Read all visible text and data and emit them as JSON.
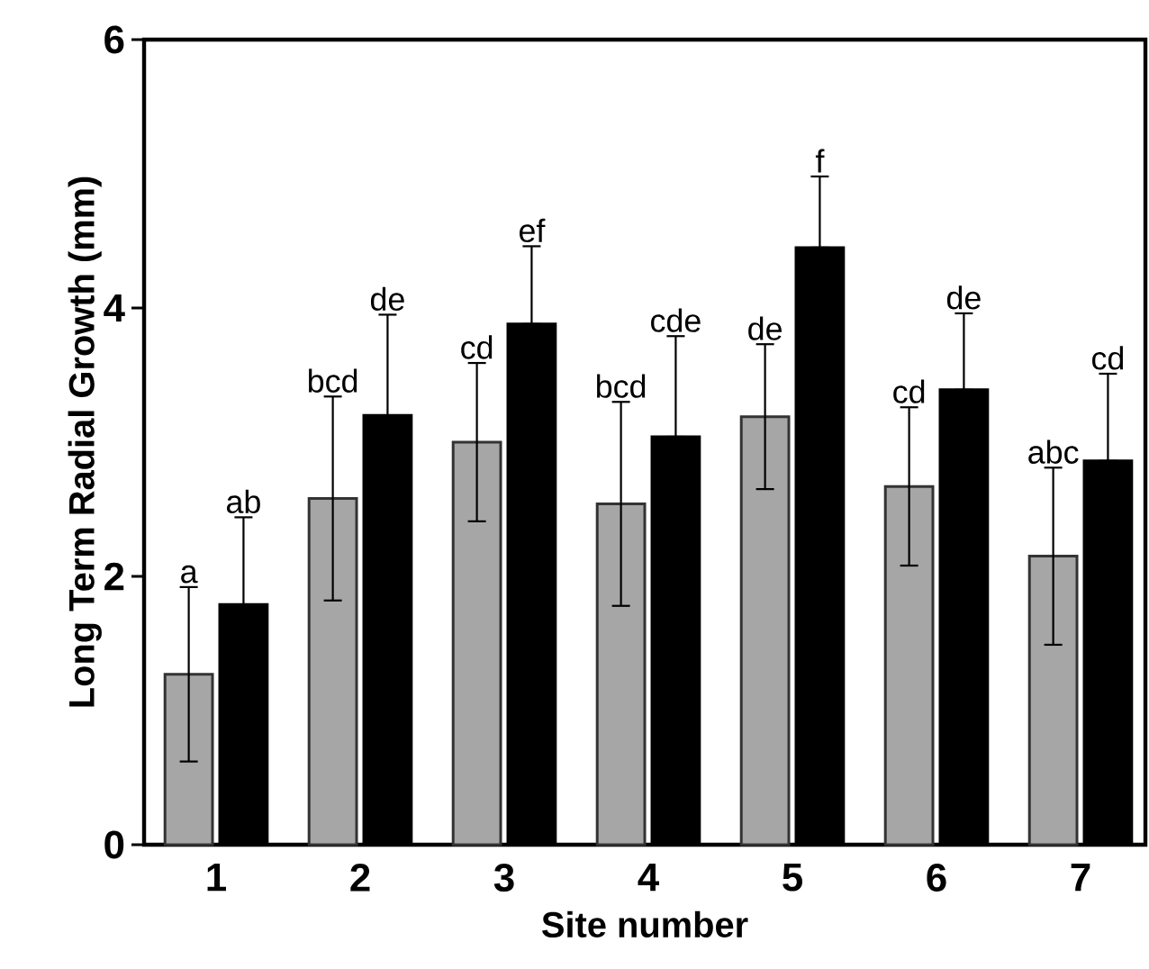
{
  "chart_data": {
    "type": "bar",
    "xlabel": "Site number",
    "ylabel": "Long Term Radial Growth (mm)",
    "categories": [
      "1",
      "2",
      "3",
      "4",
      "5",
      "6",
      "7"
    ],
    "series": [
      {
        "color": "#a6a6a6",
        "values": [
          1.27,
          2.58,
          3.0,
          2.54,
          3.19,
          2.67,
          2.15
        ],
        "errors": [
          0.65,
          0.76,
          0.59,
          0.76,
          0.54,
          0.59,
          0.66
        ]
      },
      {
        "color": "#000000",
        "values": [
          1.79,
          3.2,
          3.88,
          3.04,
          4.45,
          3.39,
          2.86
        ],
        "errors": [
          [
            1.79,
            2.44
          ],
          [
            3.2,
            3.95
          ],
          [
            3.88,
            4.46
          ],
          [
            3.04,
            3.79
          ],
          [
            4.45,
            4.98
          ],
          [
            3.39,
            3.96
          ],
          [
            2.86,
            3.51
          ]
        ]
      }
    ],
    "ylim": [
      0,
      6
    ],
    "yticks": [
      0,
      2,
      4,
      6
    ],
    "grid": false,
    "annotations": [
      "a",
      "ab",
      "bcd",
      "de",
      "cd",
      "ef",
      "bcd",
      "cde",
      "de",
      "f",
      "cd",
      "de",
      "abc",
      "cd"
    ]
  }
}
